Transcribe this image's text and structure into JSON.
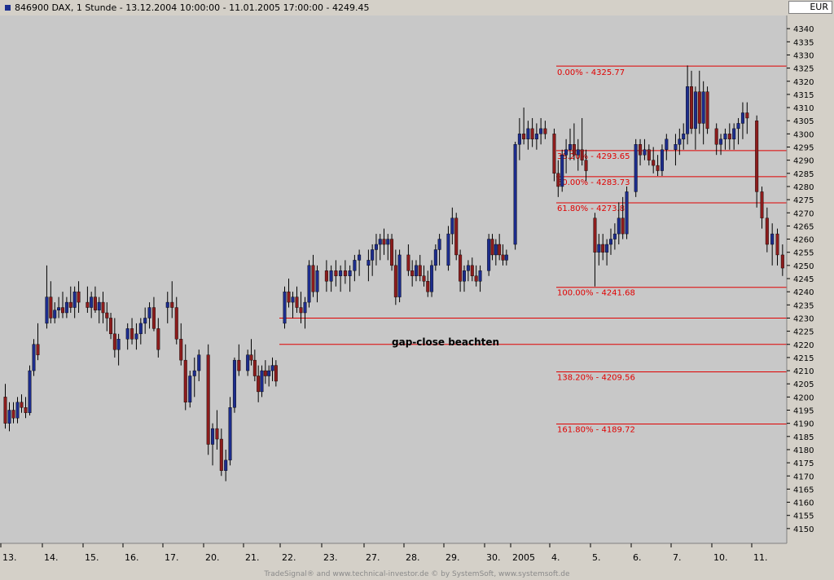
{
  "header": {
    "title": "846900  DAX, 1 Stunde - 13.12.2004 10:00:00 - 11.01.2005 17:00:00 - 4249.45",
    "currency": "EUR"
  },
  "footer": {
    "credit": "TradeSignal® and www.technical-investor.de © by SystemSoft, www.systemsoft.de"
  },
  "colors": {
    "background": "#c8c8c8",
    "session_band": "#ccf5cc",
    "up_candle": "#1c2c8c",
    "down_candle": "#8c1c1c",
    "fib_line": "#e00000"
  },
  "chart_data": {
    "type": "candlestick",
    "title": "846900  DAX, 1 Stunde - 13.12.2004 10:00:00 - 11.01.2005 17:00:00 - 4249.45",
    "ylim": [
      4145,
      4345
    ],
    "y_ticks": [
      4150,
      4155,
      4160,
      4165,
      4170,
      4175,
      4180,
      4185,
      4190,
      4195,
      4200,
      4205,
      4210,
      4215,
      4220,
      4225,
      4230,
      4235,
      4240,
      4245,
      4250,
      4255,
      4260,
      4265,
      4270,
      4275,
      4280,
      4285,
      4290,
      4295,
      4300,
      4305,
      4310,
      4315,
      4320,
      4325,
      4330,
      4335,
      4340
    ],
    "x_labels": [
      "13.",
      "14.",
      "15.",
      "16.",
      "17.",
      "20.",
      "21.",
      "22.",
      "23.",
      "27.",
      "28.",
      "29.",
      "30.",
      "2005",
      "4.",
      "5.",
      "6.",
      "7.",
      "10.",
      "11."
    ],
    "days": [
      {
        "label": "13.",
        "bars": [
          [
            4200,
            4205,
            4188,
            4190
          ],
          [
            4190,
            4198,
            4187,
            4195
          ],
          [
            4195,
            4198,
            4190,
            4192
          ],
          [
            4192,
            4200,
            4190,
            4198
          ],
          [
            4198,
            4201,
            4194,
            4196
          ],
          [
            4196,
            4200,
            4192,
            4194
          ],
          [
            4194,
            4212,
            4193,
            4210
          ],
          [
            4210,
            4222,
            4208,
            4220
          ],
          [
            4220,
            4228,
            4214,
            4216
          ]
        ]
      },
      {
        "label": "14.",
        "bars": [
          [
            4228,
            4250,
            4226,
            4238
          ],
          [
            4238,
            4244,
            4228,
            4230
          ],
          [
            4230,
            4236,
            4228,
            4233
          ],
          [
            4233,
            4238,
            4230,
            4234
          ],
          [
            4234,
            4240,
            4230,
            4232
          ],
          [
            4232,
            4238,
            4230,
            4236
          ],
          [
            4236,
            4242,
            4232,
            4234
          ],
          [
            4234,
            4242,
            4230,
            4240
          ],
          [
            4240,
            4244,
            4232,
            4236
          ]
        ]
      },
      {
        "label": "15.",
        "bars": [
          [
            4236,
            4242,
            4232,
            4234
          ],
          [
            4234,
            4240,
            4230,
            4238
          ],
          [
            4238,
            4242,
            4232,
            4233
          ],
          [
            4233,
            4238,
            4228,
            4236
          ],
          [
            4236,
            4240,
            4228,
            4232
          ],
          [
            4232,
            4236,
            4225,
            4230
          ],
          [
            4230,
            4232,
            4222,
            4224
          ],
          [
            4224,
            4230,
            4215,
            4218
          ],
          [
            4218,
            4224,
            4212,
            4222
          ]
        ]
      },
      {
        "label": "16.",
        "bars": [
          [
            4222,
            4228,
            4218,
            4226
          ],
          [
            4226,
            4230,
            4220,
            4222
          ],
          [
            4222,
            4228,
            4218,
            4224
          ],
          [
            4224,
            4230,
            4220,
            4228
          ],
          [
            4228,
            4234,
            4224,
            4230
          ],
          [
            4230,
            4236,
            4226,
            4234
          ],
          [
            4234,
            4238,
            4225,
            4226
          ],
          [
            4226,
            4230,
            4215,
            4218
          ]
        ]
      },
      {
        "label": "17.",
        "bars": [
          [
            4234,
            4240,
            4228,
            4236
          ],
          [
            4236,
            4244,
            4230,
            4234
          ],
          [
            4234,
            4238,
            4220,
            4222
          ],
          [
            4222,
            4228,
            4212,
            4214
          ],
          [
            4214,
            4220,
            4195,
            4198
          ],
          [
            4198,
            4210,
            4196,
            4208
          ],
          [
            4208,
            4215,
            4200,
            4210
          ],
          [
            4210,
            4218,
            4206,
            4216
          ]
        ]
      },
      {
        "label": "20.",
        "bars": [
          [
            4216,
            4220,
            4178,
            4182
          ],
          [
            4182,
            4190,
            4174,
            4188
          ],
          [
            4188,
            4195,
            4180,
            4184
          ],
          [
            4184,
            4188,
            4170,
            4172
          ],
          [
            4172,
            4180,
            4168,
            4176
          ],
          [
            4176,
            4200,
            4174,
            4196
          ],
          [
            4196,
            4215,
            4194,
            4214
          ],
          [
            4214,
            4220,
            4208,
            4210
          ]
        ]
      },
      {
        "label": "21.",
        "bars": [
          [
            4210,
            4218,
            4208,
            4216
          ],
          [
            4216,
            4222,
            4212,
            4214
          ],
          [
            4214,
            4218,
            4206,
            4208
          ],
          [
            4208,
            4212,
            4198,
            4202
          ],
          [
            4202,
            4212,
            4200,
            4210
          ],
          [
            4210,
            4214,
            4205,
            4208
          ],
          [
            4208,
            4212,
            4204,
            4210
          ],
          [
            4210,
            4215,
            4206,
            4212
          ],
          [
            4212,
            4214,
            4204,
            4206
          ]
        ]
      },
      {
        "label": "22.",
        "bars": [
          [
            4228,
            4242,
            4226,
            4240
          ],
          [
            4240,
            4245,
            4234,
            4236
          ],
          [
            4236,
            4240,
            4230,
            4238
          ],
          [
            4238,
            4242,
            4232,
            4234
          ],
          [
            4234,
            4240,
            4228,
            4232
          ],
          [
            4232,
            4238,
            4226,
            4236
          ],
          [
            4236,
            4252,
            4234,
            4250
          ],
          [
            4250,
            4254,
            4238,
            4240
          ],
          [
            4240,
            4250,
            4236,
            4248
          ]
        ]
      },
      {
        "label": "23.",
        "bars": [
          [
            4248,
            4252,
            4240,
            4244
          ],
          [
            4244,
            4250,
            4240,
            4248
          ],
          [
            4248,
            4252,
            4242,
            4246
          ],
          [
            4246,
            4250,
            4240,
            4248
          ],
          [
            4248,
            4252,
            4243,
            4246
          ],
          [
            4246,
            4250,
            4240,
            4248
          ],
          [
            4248,
            4254,
            4244,
            4252
          ],
          [
            4252,
            4256,
            4246,
            4254
          ]
        ]
      },
      {
        "label": "27.",
        "bars": [
          [
            4250,
            4256,
            4244,
            4252
          ],
          [
            4252,
            4258,
            4246,
            4256
          ],
          [
            4256,
            4262,
            4250,
            4258
          ],
          [
            4258,
            4262,
            4252,
            4260
          ],
          [
            4260,
            4264,
            4254,
            4258
          ],
          [
            4258,
            4262,
            4252,
            4260
          ],
          [
            4260,
            4262,
            4248,
            4250
          ],
          [
            4250,
            4256,
            4235,
            4238
          ],
          [
            4238,
            4256,
            4236,
            4254
          ]
        ]
      },
      {
        "label": "28.",
        "bars": [
          [
            4254,
            4258,
            4246,
            4248
          ],
          [
            4248,
            4252,
            4242,
            4246
          ],
          [
            4246,
            4252,
            4244,
            4250
          ],
          [
            4250,
            4254,
            4244,
            4246
          ],
          [
            4246,
            4250,
            4242,
            4244
          ],
          [
            4244,
            4248,
            4238,
            4240
          ],
          [
            4240,
            4252,
            4238,
            4250
          ],
          [
            4250,
            4258,
            4248,
            4256
          ],
          [
            4256,
            4262,
            4250,
            4260
          ]
        ]
      },
      {
        "label": "29.",
        "bars": [
          [
            4250,
            4265,
            4248,
            4262
          ],
          [
            4262,
            4272,
            4258,
            4268
          ],
          [
            4268,
            4270,
            4252,
            4254
          ],
          [
            4254,
            4256,
            4240,
            4244
          ],
          [
            4244,
            4250,
            4240,
            4248
          ],
          [
            4248,
            4252,
            4244,
            4250
          ],
          [
            4250,
            4253,
            4244,
            4246
          ],
          [
            4246,
            4250,
            4242,
            4244
          ],
          [
            4244,
            4250,
            4240,
            4248
          ]
        ]
      },
      {
        "label": "30.",
        "bars": [
          [
            4248,
            4262,
            4246,
            4260
          ],
          [
            4260,
            4262,
            4252,
            4254
          ],
          [
            4254,
            4260,
            4250,
            4258
          ],
          [
            4258,
            4262,
            4252,
            4254
          ],
          [
            4254,
            4258,
            4250,
            4252
          ],
          [
            4252,
            4256,
            4250,
            4254
          ]
        ]
      },
      {
        "label": "2005",
        "bars": [
          [
            4258,
            4297,
            4256,
            4296
          ],
          [
            4296,
            4306,
            4290,
            4300
          ],
          [
            4300,
            4310,
            4296,
            4298
          ],
          [
            4298,
            4305,
            4294,
            4302
          ],
          [
            4302,
            4306,
            4295,
            4298
          ],
          [
            4298,
            4304,
            4294,
            4300
          ],
          [
            4300,
            4306,
            4296,
            4302
          ],
          [
            4302,
            4305,
            4298,
            4300
          ]
        ]
      },
      {
        "label": "4.",
        "bars": [
          [
            4300,
            4302,
            4282,
            4285
          ],
          [
            4285,
            4290,
            4276,
            4280
          ],
          [
            4280,
            4294,
            4278,
            4292
          ],
          [
            4292,
            4298,
            4285,
            4294
          ],
          [
            4294,
            4302,
            4290,
            4296
          ],
          [
            4296,
            4304,
            4290,
            4292
          ],
          [
            4292,
            4298,
            4286,
            4294
          ],
          [
            4294,
            4306,
            4288,
            4290
          ],
          [
            4290,
            4294,
            4282,
            4286
          ]
        ]
      },
      {
        "label": "5.",
        "bars": [
          [
            4268,
            4270,
            4242,
            4255
          ],
          [
            4255,
            4262,
            4250,
            4258
          ],
          [
            4258,
            4262,
            4252,
            4255
          ],
          [
            4255,
            4260,
            4250,
            4258
          ],
          [
            4258,
            4264,
            4254,
            4260
          ],
          [
            4260,
            4266,
            4256,
            4262
          ],
          [
            4262,
            4274,
            4258,
            4268
          ],
          [
            4268,
            4276,
            4260,
            4262
          ],
          [
            4262,
            4280,
            4260,
            4278
          ]
        ]
      },
      {
        "label": "6.",
        "bars": [
          [
            4278,
            4298,
            4276,
            4296
          ],
          [
            4296,
            4298,
            4288,
            4292
          ],
          [
            4292,
            4298,
            4290,
            4294
          ],
          [
            4294,
            4296,
            4288,
            4290
          ],
          [
            4290,
            4295,
            4285,
            4288
          ],
          [
            4288,
            4292,
            4284,
            4286
          ],
          [
            4286,
            4296,
            4284,
            4294
          ],
          [
            4294,
            4300,
            4290,
            4298
          ]
        ]
      },
      {
        "label": "7.",
        "bars": [
          [
            4294,
            4300,
            4288,
            4296
          ],
          [
            4296,
            4302,
            4292,
            4298
          ],
          [
            4298,
            4304,
            4294,
            4300
          ],
          [
            4300,
            4326,
            4296,
            4318
          ],
          [
            4318,
            4324,
            4300,
            4302
          ],
          [
            4302,
            4318,
            4294,
            4316
          ],
          [
            4316,
            4324,
            4300,
            4304
          ],
          [
            4304,
            4320,
            4296,
            4316
          ],
          [
            4316,
            4318,
            4300,
            4302
          ]
        ]
      },
      {
        "label": "10.",
        "bars": [
          [
            4302,
            4304,
            4292,
            4296
          ],
          [
            4296,
            4300,
            4292,
            4298
          ],
          [
            4298,
            4302,
            4294,
            4300
          ],
          [
            4300,
            4304,
            4294,
            4298
          ],
          [
            4298,
            4304,
            4294,
            4302
          ],
          [
            4302,
            4306,
            4296,
            4304
          ],
          [
            4304,
            4312,
            4298,
            4308
          ],
          [
            4308,
            4312,
            4300,
            4306
          ]
        ]
      },
      {
        "label": "11.",
        "bars": [
          [
            4305,
            4307,
            4272,
            4278
          ],
          [
            4278,
            4280,
            4264,
            4268
          ],
          [
            4268,
            4272,
            4255,
            4258
          ],
          [
            4258,
            4266,
            4250,
            4262
          ],
          [
            4262,
            4264,
            4250,
            4254
          ],
          [
            4254,
            4258,
            4246,
            4249
          ]
        ]
      }
    ],
    "fib_levels": [
      {
        "label": "0.00% - 4325.77",
        "value": 4325.77
      },
      {
        "label": "38.20% - 4293.65",
        "value": 4293.65
      },
      {
        "label": "50.00% - 4283.73",
        "value": 4283.73
      },
      {
        "label": "61.80% - 4273.8",
        "value": 4273.8
      },
      {
        "label": "100.00% - 4241.68",
        "value": 4241.68
      },
      {
        "label": "138.20% - 4209.56",
        "value": 4209.56
      },
      {
        "label": "161.80% - 4189.72",
        "value": 4189.72
      }
    ],
    "gap_lines": [
      4230,
      4220
    ],
    "annotation": "gap-close beachten"
  }
}
